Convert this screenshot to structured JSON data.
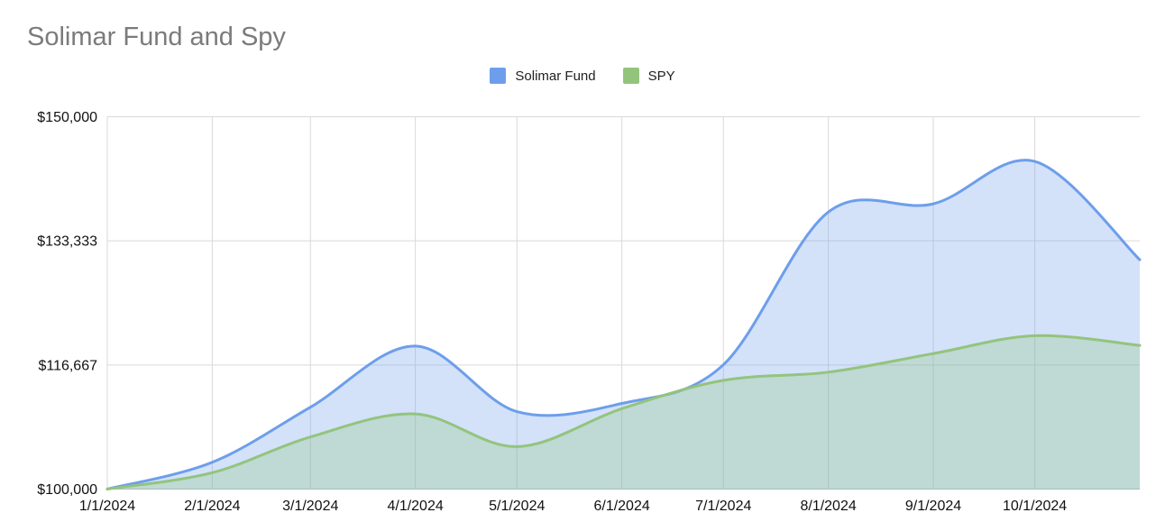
{
  "title": "Solimar Fund and Spy",
  "legend": {
    "items": [
      {
        "label": "Solimar Fund",
        "color": "#6d9eeb"
      },
      {
        "label": "SPY",
        "color": "#93c47d"
      }
    ]
  },
  "chart_data": {
    "type": "area",
    "title": "Solimar Fund and Spy",
    "smooth": true,
    "grid": true,
    "legend_position": "top-center",
    "x": [
      "1/1/2024",
      "2/1/2024",
      "3/1/2024",
      "4/1/2024",
      "5/1/2024",
      "6/1/2024",
      "7/1/2024",
      "8/1/2024",
      "9/1/2024",
      "10/1/2024",
      "11/1/2024"
    ],
    "x_days": [
      0,
      31,
      60,
      91,
      121,
      152,
      182,
      213,
      244,
      274,
      305
    ],
    "xlim_days": [
      0,
      305
    ],
    "x_axis_tick_labels": [
      "1/1/2024",
      "2/1/2024",
      "3/1/2024",
      "4/1/2024",
      "5/1/2024",
      "6/1/2024",
      "7/1/2024",
      "8/1/2024",
      "9/1/2024",
      "10/1/2024"
    ],
    "x_axis_tick_days": [
      0,
      31,
      60,
      91,
      121,
      152,
      182,
      213,
      244,
      274
    ],
    "series": [
      {
        "name": "Solimar Fund",
        "color": "#6d9eeb",
        "fill_opacity": 0.3,
        "values": [
          100000,
          103600,
          111000,
          119200,
          110400,
          111500,
          116700,
          137200,
          138300,
          144000,
          130800
        ]
      },
      {
        "name": "SPY",
        "color": "#93c47d",
        "fill_opacity": 0.3,
        "values": [
          100000,
          102200,
          107000,
          110100,
          105700,
          110800,
          114600,
          115700,
          118200,
          120600,
          119300
        ]
      }
    ],
    "y_axis": {
      "ylim": [
        100000,
        150000
      ],
      "tick_values": [
        100000,
        116667,
        133333,
        150000
      ],
      "tick_labels": [
        "$100,000",
        "$116,667",
        "$133,333",
        "$150,000"
      ]
    },
    "styles": {
      "grid_color": "#d9d9d9",
      "axis_line_color": "#bdbdbd",
      "axis_label_color": "#111111",
      "title_color": "#7b7b7b"
    }
  }
}
